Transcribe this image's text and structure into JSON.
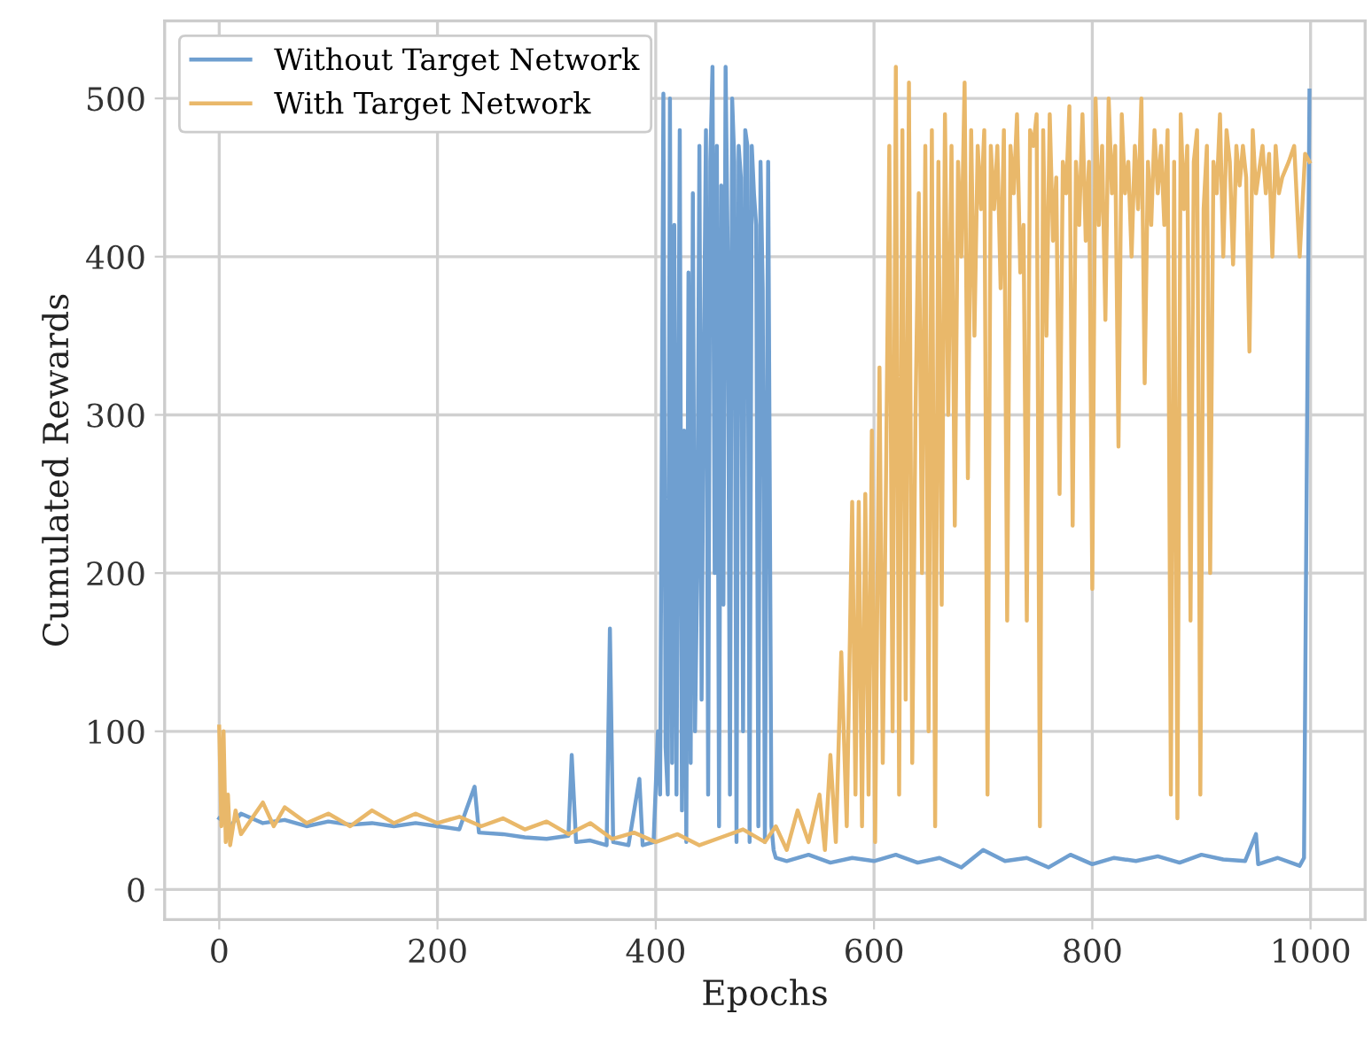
{
  "chart_data": {
    "type": "line",
    "xlabel": "Epochs",
    "ylabel": "Cumulated Rewards",
    "xlim": [
      -50,
      1050
    ],
    "ylim": [
      -19,
      549
    ],
    "xticks": [
      0,
      200,
      400,
      600,
      800,
      1000
    ],
    "yticks": [
      0,
      100,
      200,
      300,
      400,
      500
    ],
    "grid": true,
    "legend": "top left",
    "line_style": "solid",
    "marker": "none",
    "series": [
      {
        "name": "Without Target Network",
        "color": "#6f9fd0",
        "x": [
          0,
          10,
          20,
          40,
          60,
          80,
          100,
          120,
          140,
          160,
          180,
          200,
          220,
          234,
          238,
          260,
          280,
          300,
          320,
          323,
          327,
          340,
          355,
          358,
          361,
          375,
          385,
          388,
          398,
          402,
          404,
          407,
          409,
          411,
          413,
          415,
          417,
          419,
          422,
          424,
          426,
          428,
          430,
          432,
          434,
          436,
          438,
          440,
          442,
          444,
          446,
          448,
          450,
          452,
          454,
          456,
          458,
          460,
          462,
          464,
          466,
          468,
          470,
          472,
          474,
          476,
          478,
          480,
          482,
          484,
          486,
          488,
          490,
          492,
          494,
          496,
          498,
          500,
          503,
          506,
          508,
          510,
          520,
          540,
          560,
          580,
          600,
          620,
          640,
          660,
          680,
          700,
          720,
          740,
          760,
          780,
          800,
          820,
          840,
          860,
          880,
          900,
          920,
          940,
          950,
          952,
          970,
          990,
          994,
          999
        ],
        "values": [
          45,
          40,
          48,
          42,
          44,
          40,
          43,
          41,
          42,
          40,
          42,
          40,
          38,
          65,
          36,
          35,
          33,
          32,
          34,
          85,
          30,
          31,
          28,
          165,
          30,
          28,
          70,
          28,
          30,
          100,
          60,
          503,
          90,
          60,
          500,
          80,
          420,
          60,
          480,
          50,
          290,
          30,
          390,
          80,
          440,
          100,
          200,
          470,
          120,
          330,
          480,
          60,
          460,
          520,
          200,
          470,
          40,
          445,
          180,
          520,
          400,
          60,
          500,
          460,
          30,
          470,
          450,
          100,
          480,
          470,
          30,
          470,
          440,
          420,
          40,
          460,
          380,
          30,
          460,
          40,
          25,
          20,
          18,
          22,
          17,
          20,
          18,
          22,
          17,
          20,
          14,
          25,
          18,
          20,
          14,
          22,
          16,
          20,
          18,
          21,
          17,
          22,
          19,
          18,
          35,
          16,
          20,
          15,
          20,
          505
        ]
      },
      {
        "name": "With Target Network",
        "color": "#e9b86a",
        "x": [
          0,
          2,
          4,
          6,
          8,
          10,
          15,
          20,
          30,
          40,
          50,
          60,
          80,
          100,
          120,
          140,
          160,
          180,
          200,
          220,
          240,
          260,
          280,
          300,
          320,
          340,
          360,
          380,
          400,
          420,
          440,
          460,
          480,
          500,
          510,
          520,
          530,
          540,
          550,
          555,
          560,
          565,
          570,
          575,
          580,
          583,
          586,
          589,
          592,
          595,
          598,
          601,
          605,
          608,
          611,
          614,
          617,
          620,
          623,
          626,
          629,
          632,
          635,
          638,
          641,
          644,
          647,
          650,
          653,
          656,
          659,
          662,
          665,
          668,
          671,
          674,
          677,
          680,
          683,
          686,
          689,
          692,
          695,
          698,
          701,
          704,
          707,
          710,
          713,
          716,
          719,
          722,
          725,
          728,
          731,
          734,
          737,
          740,
          743,
          746,
          749,
          752,
          755,
          758,
          761,
          764,
          767,
          770,
          773,
          776,
          779,
          782,
          785,
          788,
          791,
          794,
          797,
          800,
          803,
          806,
          809,
          812,
          815,
          818,
          821,
          824,
          827,
          830,
          833,
          836,
          839,
          842,
          845,
          848,
          851,
          854,
          857,
          860,
          863,
          866,
          869,
          872,
          875,
          878,
          881,
          884,
          887,
          890,
          893,
          896,
          899,
          902,
          905,
          908,
          911,
          914,
          917,
          920,
          923,
          926,
          929,
          932,
          935,
          938,
          941,
          944,
          947,
          950,
          953,
          956,
          959,
          962,
          965,
          968,
          971,
          974,
          980,
          985,
          990,
          995,
          999
        ],
        "values": [
          103,
          40,
          100,
          30,
          60,
          28,
          50,
          35,
          45,
          55,
          40,
          52,
          42,
          48,
          40,
          50,
          42,
          48,
          42,
          46,
          40,
          45,
          38,
          43,
          35,
          42,
          32,
          36,
          30,
          35,
          28,
          33,
          38,
          30,
          40,
          25,
          50,
          30,
          60,
          25,
          85,
          30,
          150,
          40,
          245,
          60,
          245,
          40,
          250,
          60,
          290,
          30,
          330,
          80,
          260,
          470,
          100,
          520,
          60,
          480,
          120,
          510,
          80,
          300,
          440,
          200,
          470,
          100,
          480,
          40,
          460,
          180,
          490,
          300,
          470,
          230,
          460,
          400,
          510,
          260,
          480,
          350,
          470,
          430,
          480,
          60,
          470,
          430,
          470,
          380,
          480,
          170,
          470,
          440,
          490,
          390,
          420,
          170,
          480,
          470,
          490,
          40,
          480,
          350,
          490,
          410,
          450,
          250,
          460,
          440,
          495,
          230,
          460,
          420,
          490,
          410,
          460,
          190,
          500,
          420,
          470,
          360,
          500,
          440,
          470,
          280,
          490,
          440,
          460,
          400,
          470,
          430,
          500,
          320,
          460,
          420,
          480,
          440,
          470,
          420,
          480,
          60,
          460,
          45,
          490,
          430,
          470,
          170,
          460,
          480,
          60,
          430,
          470,
          200,
          460,
          440,
          490,
          400,
          480,
          460,
          395,
          470,
          445,
          470,
          450,
          340,
          480,
          440,
          455,
          470,
          440,
          465,
          400,
          470,
          440,
          450,
          460,
          470,
          400,
          465,
          460
        ]
      }
    ]
  }
}
